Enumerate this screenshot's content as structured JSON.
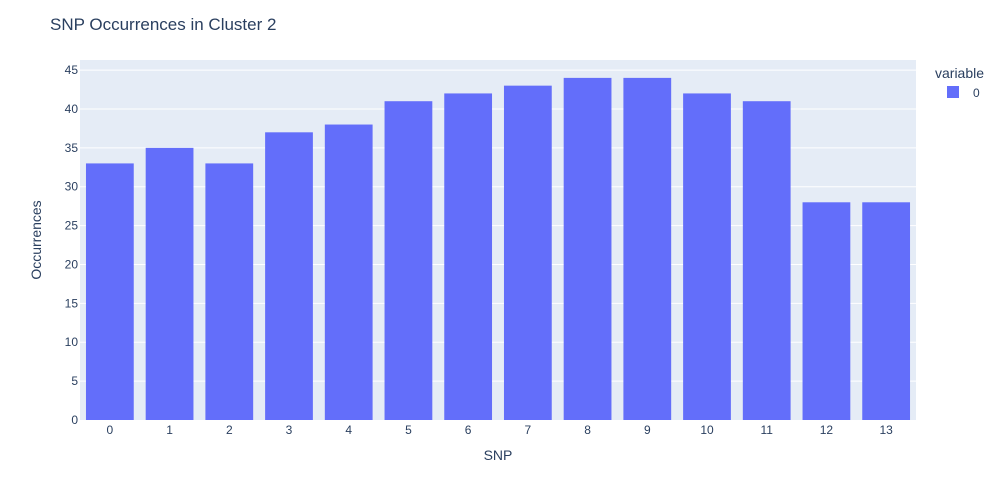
{
  "chart_data": {
    "type": "bar",
    "title": "SNP Occurrences in Cluster 2",
    "xlabel": "SNP",
    "ylabel": "Occurrences",
    "categories": [
      "0",
      "1",
      "2",
      "3",
      "4",
      "5",
      "6",
      "7",
      "8",
      "9",
      "10",
      "11",
      "12",
      "13"
    ],
    "series": [
      {
        "name": "0",
        "values": [
          33,
          35,
          33,
          37,
          38,
          41,
          42,
          43,
          44,
          44,
          42,
          41,
          28,
          28
        ]
      }
    ],
    "ylim": [
      0,
      46.3
    ],
    "yticks": [
      0,
      5,
      10,
      15,
      20,
      25,
      30,
      35,
      40,
      45
    ],
    "grid": true,
    "legend": {
      "title": "variable",
      "position": "right"
    },
    "colors": {
      "bar": "#636efa",
      "plot_bg": "#e5ecf6",
      "grid": "#ffffff",
      "text": "#2a3f5f"
    }
  }
}
